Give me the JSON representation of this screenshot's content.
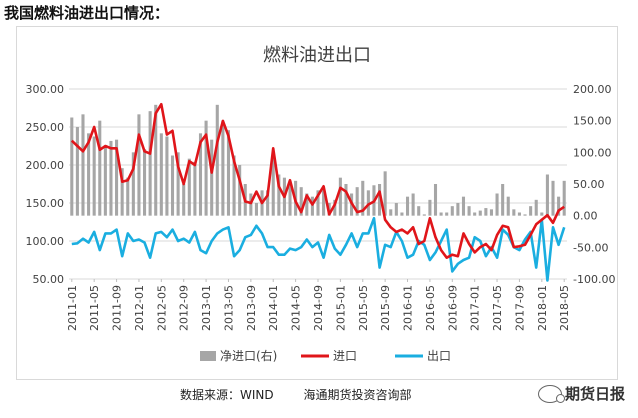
{
  "page": {
    "heading": "我国燃料油进出口情况："
  },
  "footer": {
    "source_label": "数据来源：WIND",
    "org_label": "海通期货投资咨询部",
    "brand_label": "期货日报"
  },
  "colors": {
    "net": "#a6a6a6",
    "import": "#e0151a",
    "export": "#1aaee0",
    "grid": "#d9d9d9"
  },
  "chart_data": {
    "type": "bar+line",
    "title": "燃料油进出口",
    "x": [
      "2011-01",
      "2011-02",
      "2011-03",
      "2011-04",
      "2011-05",
      "2011-06",
      "2011-07",
      "2011-08",
      "2011-09",
      "2011-10",
      "2011-11",
      "2011-12",
      "2012-01",
      "2012-02",
      "2012-03",
      "2012-04",
      "2012-05",
      "2012-06",
      "2012-07",
      "2012-08",
      "2012-09",
      "2012-10",
      "2012-11",
      "2012-12",
      "2013-01",
      "2013-02",
      "2013-03",
      "2013-04",
      "2013-05",
      "2013-06",
      "2013-07",
      "2013-08",
      "2013-09",
      "2013-10",
      "2013-11",
      "2013-12",
      "2014-01",
      "2014-02",
      "2014-03",
      "2014-04",
      "2014-05",
      "2014-06",
      "2014-07",
      "2014-08",
      "2014-09",
      "2014-10",
      "2014-11",
      "2014-12",
      "2015-01",
      "2015-02",
      "2015-03",
      "2015-04",
      "2015-05",
      "2015-06",
      "2015-07",
      "2015-08",
      "2015-09",
      "2015-10",
      "2015-11",
      "2015-12",
      "2016-01",
      "2016-02",
      "2016-03",
      "2016-04",
      "2016-05",
      "2016-06",
      "2016-07",
      "2016-08",
      "2016-09",
      "2016-10",
      "2016-11",
      "2016-12",
      "2017-01",
      "2017-02",
      "2017-03",
      "2017-04",
      "2017-05",
      "2017-06",
      "2017-07",
      "2017-08",
      "2017-09",
      "2017-10",
      "2017-11",
      "2017-12",
      "2018-01",
      "2018-02",
      "2018-03",
      "2018-04",
      "2018-05"
    ],
    "x_tick_labels": [
      "2011-01",
      "2011-05",
      "2011-09",
      "2012-01",
      "2012-05",
      "2012-09",
      "2013-01",
      "2013-05",
      "2013-09",
      "2014-01",
      "2014-05",
      "2014-09",
      "2015-01",
      "2015-05",
      "2015-09",
      "2016-01",
      "2016-05",
      "2016-09",
      "2017-01",
      "2017-05",
      "2017-09",
      "2018-01",
      "2018-05"
    ],
    "y_left": {
      "min": 50,
      "max": 300,
      "ticks": [
        "50.00",
        "100.00",
        "150.00",
        "200.00",
        "250.00",
        "300.00"
      ]
    },
    "y_right": {
      "min": -100,
      "max": 200,
      "ticks": [
        "-100.00",
        "-50.00",
        "0.00",
        "50.00",
        "100.00",
        "150.00",
        "200.00"
      ]
    },
    "series": [
      {
        "name": "净进口(右)",
        "type": "bar",
        "axis": "right",
        "values": [
          155,
          140,
          160,
          130,
          125,
          150,
          110,
          118,
          120,
          75,
          60,
          100,
          160,
          105,
          165,
          175,
          130,
          125,
          95,
          100,
          50,
          90,
          85,
          130,
          150,
          120,
          175,
          150,
          135,
          95,
          80,
          50,
          35,
          20,
          40,
          40,
          100,
          65,
          60,
          55,
          55,
          45,
          35,
          30,
          40,
          40,
          20,
          25,
          60,
          50,
          35,
          45,
          55,
          40,
          48,
          50,
          70,
          10,
          20,
          5,
          30,
          35,
          15,
          2,
          25,
          50,
          5,
          5,
          15,
          20,
          30,
          15,
          5,
          8,
          12,
          10,
          35,
          50,
          30,
          10,
          5,
          2,
          15,
          25,
          5,
          65,
          55,
          30,
          55
        ]
      },
      {
        "name": "进口",
        "type": "line",
        "axis": "left",
        "values": [
          232,
          225,
          218,
          230,
          250,
          220,
          225,
          222,
          222,
          178,
          180,
          195,
          240,
          218,
          215,
          268,
          280,
          240,
          245,
          198,
          175,
          205,
          200,
          230,
          240,
          190,
          230,
          258,
          238,
          205,
          180,
          152,
          150,
          165,
          150,
          160,
          222,
          172,
          158,
          180,
          152,
          138,
          160,
          148,
          160,
          172,
          135,
          148,
          170,
          165,
          150,
          138,
          140,
          148,
          152,
          165,
          128,
          118,
          112,
          115,
          110,
          118,
          96,
          100,
          130,
          105,
          88,
          78,
          82,
          80,
          110,
          96,
          85,
          92,
          96,
          88,
          108,
          120,
          118,
          92,
          93,
          95,
          108,
          122,
          128,
          134,
          124,
          140,
          145
        ]
      },
      {
        "name": "出口",
        "type": "line",
        "axis": "left",
        "values": [
          96,
          97,
          103,
          98,
          112,
          88,
          110,
          110,
          115,
          80,
          110,
          100,
          102,
          98,
          78,
          110,
          112,
          105,
          115,
          100,
          103,
          98,
          112,
          88,
          84,
          100,
          110,
          115,
          118,
          80,
          88,
          105,
          108,
          120,
          110,
          92,
          92,
          82,
          82,
          90,
          88,
          92,
          102,
          92,
          98,
          78,
          108,
          90,
          82,
          95,
          110,
          92,
          110,
          110,
          130,
          65,
          95,
          92,
          112,
          100,
          78,
          82,
          100,
          95,
          75,
          85,
          100,
          115,
          60,
          70,
          75,
          78,
          105,
          100,
          80,
          92,
          78,
          115,
          108,
          92,
          88,
          102,
          112,
          65,
          128,
          48,
          118,
          95,
          118
        ]
      }
    ],
    "legend": {
      "position": "bottom",
      "labels": [
        "净进口(右)",
        "进口",
        "出口"
      ]
    }
  }
}
